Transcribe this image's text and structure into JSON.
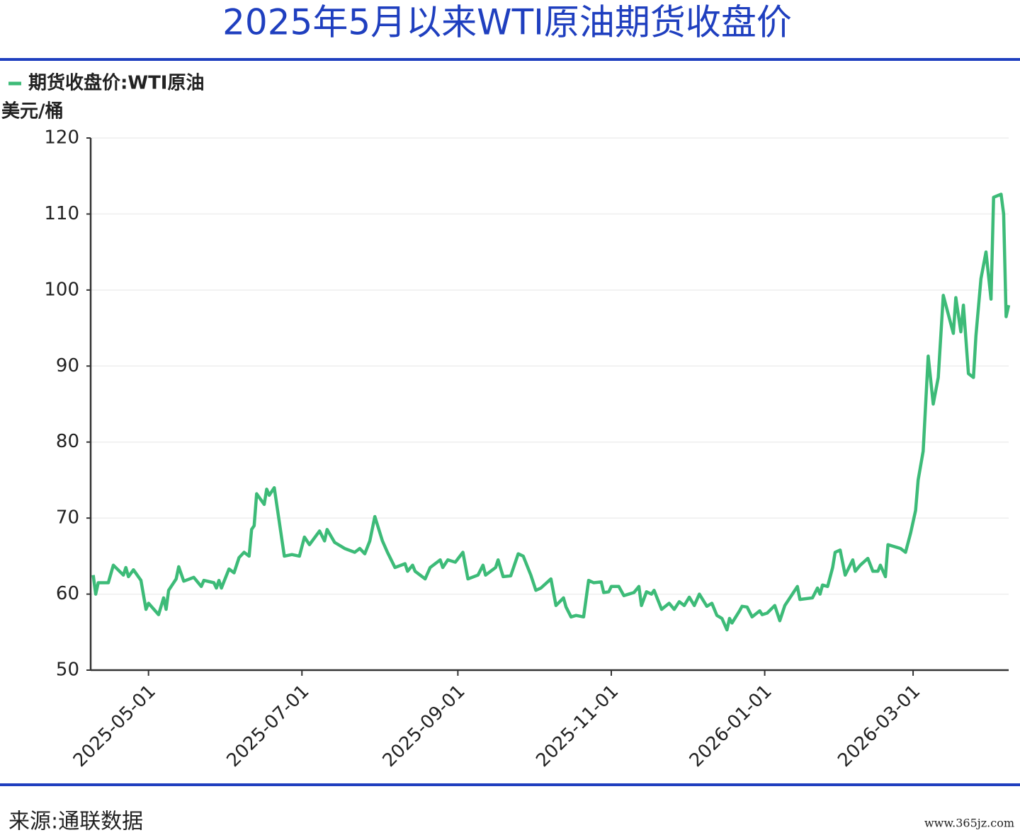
{
  "chart_data": {
    "type": "line",
    "title": "2025年5月以来WTI原油期货收盘价",
    "y_label": "美元/桶",
    "source": "来源:通联数据",
    "watermark": "www.365jz.com",
    "grid": true,
    "legend_position": "top-left",
    "xlim": [
      "2025-04-08",
      "2026-04-08"
    ],
    "xticks": [
      "2025-05-01",
      "2025-07-01",
      "2025-09-01",
      "2025-11-01",
      "2026-01-01",
      "2026-03-01"
    ],
    "ylim": [
      50,
      120
    ],
    "yticks": [
      50,
      60,
      70,
      80,
      90,
      100,
      110,
      120
    ],
    "x": [
      "2025-04-09",
      "2025-04-10",
      "2025-04-11",
      "2025-04-15",
      "2025-04-17",
      "2025-04-21",
      "2025-04-22",
      "2025-04-23",
      "2025-04-25",
      "2025-04-28",
      "2025-04-30",
      "2025-05-01",
      "2025-05-05",
      "2025-05-07",
      "2025-05-08",
      "2025-05-09",
      "2025-05-12",
      "2025-05-13",
      "2025-05-15",
      "2025-05-19",
      "2025-05-22",
      "2025-05-23",
      "2025-05-27",
      "2025-05-28",
      "2025-05-29",
      "2025-05-30",
      "2025-06-02",
      "2025-06-04",
      "2025-06-06",
      "2025-06-08",
      "2025-06-10",
      "2025-06-11",
      "2025-06-12",
      "2025-06-13",
      "2025-06-16",
      "2025-06-17",
      "2025-06-18",
      "2025-06-20",
      "2025-06-24",
      "2025-06-27",
      "2025-06-30",
      "2025-07-02",
      "2025-07-04",
      "2025-07-08",
      "2025-07-10",
      "2025-07-11",
      "2025-07-14",
      "2025-07-18",
      "2025-07-22",
      "2025-07-24",
      "2025-07-26",
      "2025-07-28",
      "2025-07-30",
      "2025-08-02",
      "2025-08-04",
      "2025-08-07",
      "2025-08-11",
      "2025-08-12",
      "2025-08-14",
      "2025-08-15",
      "2025-08-19",
      "2025-08-21",
      "2025-08-25",
      "2025-08-26",
      "2025-08-28",
      "2025-08-31",
      "2025-09-03",
      "2025-09-05",
      "2025-09-09",
      "2025-09-11",
      "2025-09-12",
      "2025-09-16",
      "2025-09-17",
      "2025-09-19",
      "2025-09-22",
      "2025-09-25",
      "2025-09-27",
      "2025-09-30",
      "2025-10-02",
      "2025-10-04",
      "2025-10-08",
      "2025-10-10",
      "2025-10-13",
      "2025-10-14",
      "2025-10-16",
      "2025-10-18",
      "2025-10-21",
      "2025-10-23",
      "2025-10-25",
      "2025-10-28",
      "2025-10-29",
      "2025-10-31",
      "2025-11-01",
      "2025-11-04",
      "2025-11-06",
      "2025-11-10",
      "2025-11-12",
      "2025-11-13",
      "2025-11-15",
      "2025-11-17",
      "2025-11-18",
      "2025-11-21",
      "2025-11-24",
      "2025-11-26",
      "2025-11-28",
      "2025-11-30",
      "2025-12-02",
      "2025-12-04",
      "2025-12-06",
      "2025-12-09",
      "2025-12-11",
      "2025-12-13",
      "2025-12-15",
      "2025-12-17",
      "2025-12-18",
      "2025-12-19",
      "2025-12-22",
      "2025-12-23",
      "2025-12-25",
      "2025-12-27",
      "2025-12-30",
      "2025-12-31",
      "2026-01-02",
      "2026-01-05",
      "2026-01-07",
      "2026-01-09",
      "2026-01-12",
      "2026-01-14",
      "2026-01-15",
      "2026-01-20",
      "2026-01-22",
      "2026-01-23",
      "2026-01-24",
      "2026-01-26",
      "2026-01-28",
      "2026-01-29",
      "2026-01-31",
      "2026-02-02",
      "2026-02-05",
      "2026-02-06",
      "2026-02-08",
      "2026-02-11",
      "2026-02-13",
      "2026-02-15",
      "2026-02-16",
      "2026-02-18",
      "2026-02-19",
      "2026-02-21",
      "2026-02-24",
      "2026-02-26",
      "2026-02-28",
      "2026-03-02",
      "2026-03-03",
      "2026-03-05",
      "2026-03-07",
      "2026-03-09",
      "2026-03-11",
      "2026-03-13",
      "2026-03-17",
      "2026-03-18",
      "2026-03-20",
      "2026-03-21",
      "2026-03-23",
      "2026-03-25",
      "2026-03-26",
      "2026-03-28",
      "2026-03-30",
      "2026-04-01",
      "2026-04-02",
      "2026-04-05",
      "2026-04-06",
      "2026-04-07",
      "2026-04-08"
    ],
    "series": [
      {
        "name": "期货收盘价:WTI原油",
        "color": "#3dbb78",
        "values": [
          62.5,
          60,
          61.5,
          61.5,
          63.8,
          62.5,
          63.5,
          62.3,
          63.2,
          61.8,
          58,
          58.8,
          57.3,
          59.5,
          58,
          60.5,
          62,
          63.6,
          61.7,
          62.2,
          61,
          61.8,
          61.5,
          60.8,
          61.8,
          60.8,
          63.3,
          62.8,
          64.8,
          65.5,
          65,
          68.5,
          69,
          73.2,
          71.8,
          73.8,
          73,
          74,
          65,
          65.2,
          65,
          67.5,
          66.5,
          68.3,
          67,
          68.5,
          66.8,
          66,
          65.5,
          66,
          65.3,
          67,
          70.2,
          67,
          65.5,
          63.5,
          64,
          63,
          63.8,
          63,
          62,
          63.5,
          64.5,
          63.5,
          64.5,
          64.2,
          65.5,
          62,
          62.5,
          63.8,
          62.5,
          63.5,
          64.5,
          62.3,
          62.4,
          65.3,
          65,
          62.5,
          60.5,
          60.8,
          62,
          58.5,
          59.5,
          58.3,
          57,
          57.2,
          57,
          61.8,
          61.5,
          61.6,
          60.2,
          60.3,
          61,
          61,
          59.8,
          60.2,
          61,
          58.5,
          60.3,
          60,
          60.5,
          58,
          58.8,
          58,
          59,
          58.5,
          59.6,
          58.5,
          60,
          58.4,
          58.8,
          57.2,
          56.8,
          55.3,
          56.8,
          56.2,
          57.8,
          58.4,
          58.3,
          57,
          57.8,
          57.3,
          57.5,
          58.5,
          56.5,
          58.5,
          60,
          61,
          59.3,
          59.5,
          60.8,
          60,
          61.2,
          61,
          63.5,
          65.5,
          65.8,
          62.5,
          64.5,
          63,
          63.8,
          64.7,
          63,
          63,
          63.8,
          62.3,
          66.5,
          66.3,
          66,
          65.5,
          68,
          71,
          75,
          78.8,
          91.3,
          85,
          88.5,
          99.3,
          94.3,
          99,
          94.5,
          98,
          89,
          88.5,
          94,
          101.5,
          105,
          98.8,
          112.2,
          112.6,
          110,
          96.5,
          98
        ]
      }
    ]
  }
}
